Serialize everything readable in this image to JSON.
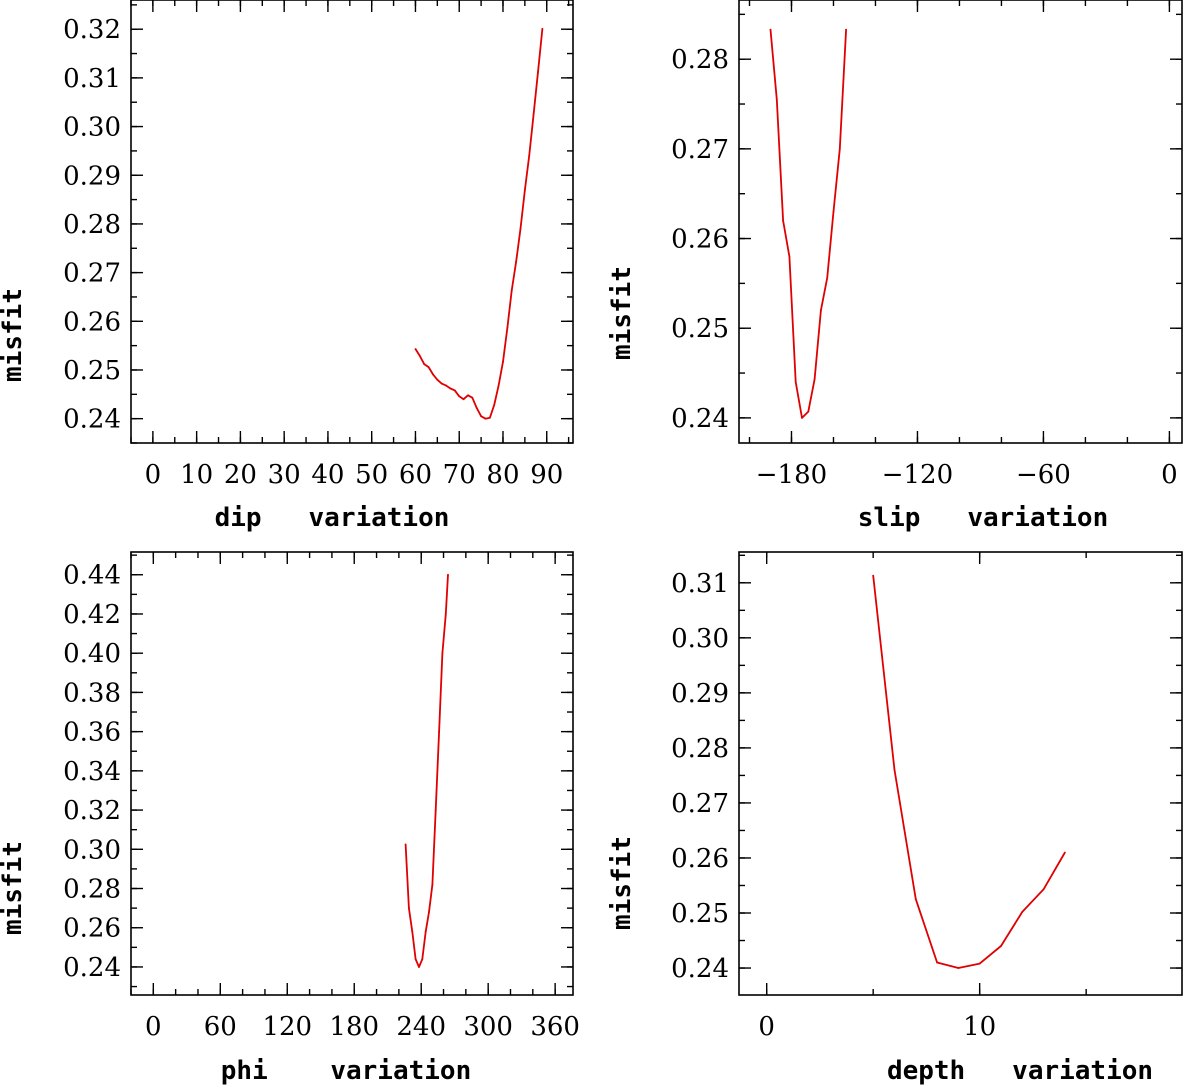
{
  "colors": {
    "line": "#e00000",
    "axis": "#000000",
    "background": "#ffffff"
  },
  "chart_data": [
    {
      "type": "line",
      "xlabel": "dip   variation",
      "ylabel": "misfit",
      "xlim": [
        -5,
        96
      ],
      "ylim": [
        0.235,
        0.326
      ],
      "xticks": [
        0,
        10,
        20,
        30,
        40,
        50,
        60,
        70,
        80,
        90
      ],
      "xticklabels": [
        "0",
        "10",
        "20",
        "30",
        "40",
        "50",
        "60",
        "70",
        "80",
        "90"
      ],
      "xminor": 5,
      "yticks": [
        0.24,
        0.25,
        0.26,
        0.27,
        0.28,
        0.29,
        0.3,
        0.31,
        0.32
      ],
      "yticklabels": [
        "0.24",
        "0.25",
        "0.26",
        "0.27",
        "0.28",
        "0.29",
        "0.30",
        "0.31",
        "0.32"
      ],
      "yminor": 0.005,
      "x": [
        60,
        61,
        62,
        63,
        64,
        65,
        66,
        67,
        68,
        69,
        70,
        71,
        72,
        73,
        74,
        75,
        76,
        77,
        78,
        79,
        80,
        81,
        82,
        83,
        84,
        85,
        86,
        87,
        88,
        89
      ],
      "y": [
        0.2543,
        0.2529,
        0.2512,
        0.2506,
        0.2491,
        0.248,
        0.2472,
        0.2468,
        0.2462,
        0.2458,
        0.2446,
        0.244,
        0.2448,
        0.2443,
        0.2422,
        0.2405,
        0.24,
        0.2402,
        0.2428,
        0.2468,
        0.2517,
        0.2587,
        0.2663,
        0.2722,
        0.279,
        0.287,
        0.294,
        0.3025,
        0.3112,
        0.3201
      ]
    },
    {
      "type": "line",
      "xlabel": "slip   variation",
      "ylabel": "misfit",
      "xlim": [
        -205,
        6
      ],
      "ylim": [
        0.2372,
        0.2866
      ],
      "xticks": [
        -180,
        -120,
        -60,
        0
      ],
      "xticklabels": [
        "−180",
        "−120",
        "−60",
        "0"
      ],
      "xminor": 20,
      "yticks": [
        0.24,
        0.25,
        0.26,
        0.27,
        0.28
      ],
      "yticklabels": [
        "0.24",
        "0.25",
        "0.26",
        "0.27",
        "0.28"
      ],
      "yminor": 0.005,
      "x": [
        -190,
        -187,
        -184,
        -181,
        -178,
        -175,
        -172,
        -169,
        -166,
        -163,
        -160,
        -157,
        -154
      ],
      "y": [
        0.2833,
        0.2755,
        0.262,
        0.258,
        0.244,
        0.24,
        0.2407,
        0.2443,
        0.252,
        0.2556,
        0.263,
        0.27,
        0.2833
      ]
    },
    {
      "type": "line",
      "xlabel": "phi    variation",
      "ylabel": "misfit",
      "xlim": [
        -20,
        376
      ],
      "ylim": [
        0.2257,
        0.4516
      ],
      "xticks": [
        0,
        60,
        120,
        180,
        240,
        300,
        360
      ],
      "xticklabels": [
        "0",
        "60",
        "120",
        "180",
        "240",
        "300",
        "360"
      ],
      "xminor": 20,
      "yticks": [
        0.24,
        0.26,
        0.28,
        0.3,
        0.32,
        0.34,
        0.36,
        0.38,
        0.4,
        0.42,
        0.44
      ],
      "yticklabels": [
        "0.24",
        "0.26",
        "0.28",
        "0.30",
        "0.32",
        "0.34",
        "0.36",
        "0.38",
        "0.40",
        "0.42",
        "0.44"
      ],
      "yminor": 0.01,
      "x": [
        226,
        229,
        232,
        235,
        238,
        241,
        244,
        247,
        250,
        253,
        256,
        259,
        262,
        264
      ],
      "y": [
        0.3025,
        0.27,
        0.258,
        0.244,
        0.24,
        0.244,
        0.258,
        0.268,
        0.282,
        0.32,
        0.36,
        0.4,
        0.42,
        0.44
      ]
    },
    {
      "type": "line",
      "xlabel": "depth   variation",
      "ylabel": "misfit",
      "xlim": [
        -1.3,
        19.5
      ],
      "ylim": [
        0.2351,
        0.3156
      ],
      "xticks": [
        0,
        10
      ],
      "xticklabels": [
        "0",
        "10"
      ],
      "xminor": 5,
      "yticks": [
        0.24,
        0.25,
        0.26,
        0.27,
        0.28,
        0.29,
        0.3,
        0.31
      ],
      "yticklabels": [
        "0.24",
        "0.25",
        "0.26",
        "0.27",
        "0.28",
        "0.29",
        "0.30",
        "0.31"
      ],
      "yminor": 0.005,
      "x": [
        5,
        6,
        7,
        8,
        9,
        10,
        11,
        12,
        13,
        14
      ],
      "y": [
        0.3113,
        0.276,
        0.2525,
        0.241,
        0.24,
        0.2408,
        0.244,
        0.2502,
        0.2543,
        0.261
      ]
    }
  ]
}
